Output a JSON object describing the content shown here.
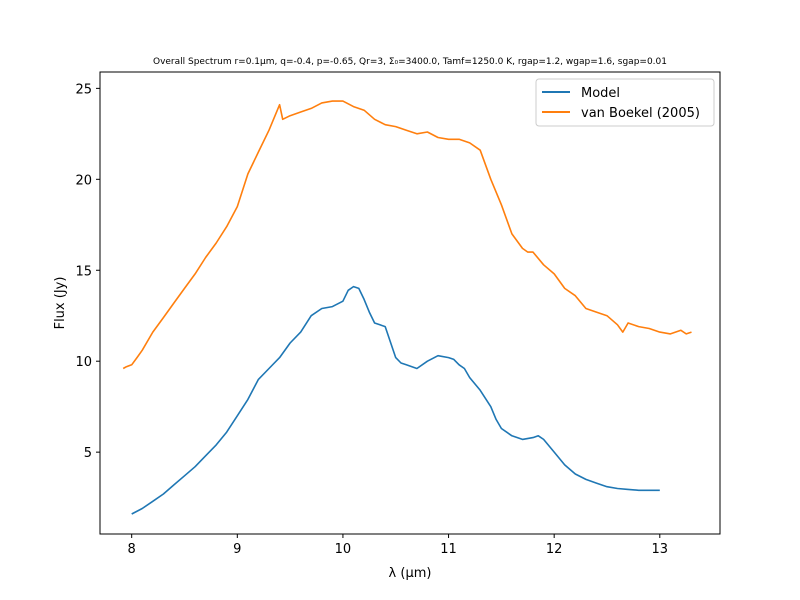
{
  "chart_data": {
    "type": "line",
    "title": "Overall Spectrum r=0.1μm, q=-0.4, p=-0.65, Qr=3, Σ₀=3400.0, Tamf=1250.0 K, rgap=1.2, wgap=1.6, sgap=0.01",
    "xlabel": "λ (μm)",
    "ylabel": "Flux (Jy)",
    "xlim": [
      7.7,
      13.57
    ],
    "ylim": [
      0.5,
      25.9
    ],
    "xticks": [
      8,
      9,
      10,
      11,
      12,
      13
    ],
    "yticks": [
      5,
      10,
      15,
      20,
      25
    ],
    "grid": false,
    "legend_position": "top-right",
    "series": [
      {
        "name": "Model",
        "color": "#1f77b4",
        "x": [
          8.0,
          8.1,
          8.2,
          8.3,
          8.4,
          8.5,
          8.6,
          8.7,
          8.8,
          8.9,
          9.0,
          9.1,
          9.2,
          9.3,
          9.4,
          9.5,
          9.6,
          9.7,
          9.8,
          9.9,
          10.0,
          10.05,
          10.1,
          10.15,
          10.2,
          10.25,
          10.3,
          10.35,
          10.4,
          10.5,
          10.55,
          10.6,
          10.7,
          10.8,
          10.9,
          11.0,
          11.05,
          11.1,
          11.15,
          11.2,
          11.3,
          11.4,
          11.45,
          11.5,
          11.6,
          11.7,
          11.8,
          11.85,
          11.9,
          12.0,
          12.1,
          12.2,
          12.3,
          12.4,
          12.5,
          12.6,
          12.7,
          12.8,
          12.9,
          13.0
        ],
        "values": [
          1.6,
          1.9,
          2.3,
          2.7,
          3.2,
          3.7,
          4.2,
          4.8,
          5.4,
          6.1,
          7.0,
          7.9,
          9.0,
          9.6,
          10.2,
          11.0,
          11.6,
          12.5,
          12.9,
          13.0,
          13.3,
          13.9,
          14.1,
          14.0,
          13.4,
          12.7,
          12.1,
          12.0,
          11.9,
          10.2,
          9.9,
          9.8,
          9.6,
          10.0,
          10.3,
          10.2,
          10.1,
          9.8,
          9.6,
          9.1,
          8.4,
          7.5,
          6.8,
          6.3,
          5.9,
          5.7,
          5.8,
          5.9,
          5.7,
          5.0,
          4.3,
          3.8,
          3.5,
          3.3,
          3.1,
          3.0,
          2.95,
          2.9,
          2.9,
          2.9
        ]
      },
      {
        "name": "van Boekel (2005)",
        "color": "#ff7f0e",
        "x": [
          7.92,
          7.95,
          8.0,
          8.05,
          8.1,
          8.2,
          8.3,
          8.4,
          8.5,
          8.6,
          8.7,
          8.8,
          8.9,
          9.0,
          9.1,
          9.2,
          9.3,
          9.4,
          9.43,
          9.5,
          9.6,
          9.7,
          9.8,
          9.9,
          10.0,
          10.1,
          10.2,
          10.3,
          10.4,
          10.5,
          10.6,
          10.7,
          10.8,
          10.9,
          11.0,
          11.1,
          11.2,
          11.3,
          11.4,
          11.5,
          11.6,
          11.7,
          11.75,
          11.8,
          11.9,
          12.0,
          12.1,
          12.2,
          12.3,
          12.4,
          12.5,
          12.6,
          12.65,
          12.7,
          12.8,
          12.9,
          13.0,
          13.1,
          13.2,
          13.25,
          13.3
        ],
        "values": [
          9.6,
          9.7,
          9.8,
          10.2,
          10.6,
          11.6,
          12.4,
          13.2,
          14.0,
          14.8,
          15.7,
          16.5,
          17.4,
          18.5,
          20.3,
          21.5,
          22.7,
          24.1,
          23.3,
          23.5,
          23.7,
          23.9,
          24.2,
          24.3,
          24.3,
          24.0,
          23.8,
          23.3,
          23.0,
          22.9,
          22.7,
          22.5,
          22.6,
          22.3,
          22.2,
          22.2,
          22.0,
          21.6,
          20.0,
          18.6,
          17.0,
          16.2,
          16.0,
          16.0,
          15.3,
          14.8,
          14.0,
          13.6,
          12.9,
          12.7,
          12.5,
          12.0,
          11.6,
          12.1,
          11.9,
          11.8,
          11.6,
          11.5,
          11.7,
          11.5,
          11.6
        ]
      }
    ]
  }
}
